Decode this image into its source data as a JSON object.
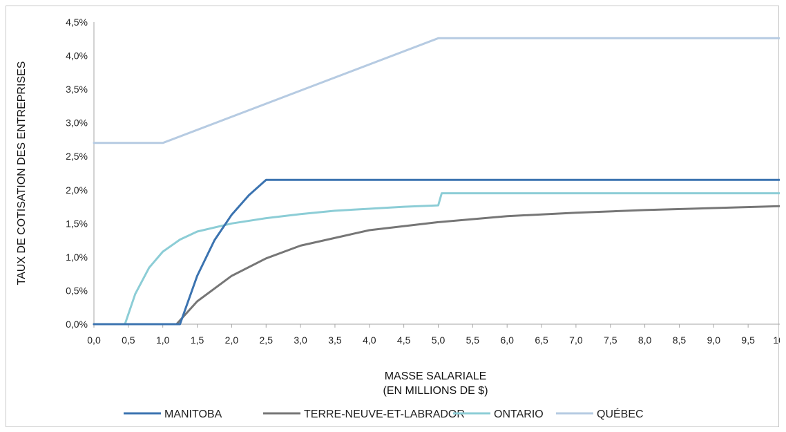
{
  "chart_data": {
    "type": "line",
    "ylabel": "TAUX DE COTISATION DES ENTREPRISES",
    "xlabel_line1": "MASSE SALARIALE",
    "xlabel_line2": "(EN MILLIONS DE $)",
    "xlim": [
      0,
      10
    ],
    "ylim": [
      0,
      4.5
    ],
    "x_ticks": [
      0,
      0.5,
      1,
      1.5,
      2,
      2.5,
      3,
      3.5,
      4,
      4.5,
      5,
      5.5,
      6,
      6.5,
      7,
      7.5,
      8,
      8.5,
      9,
      9.5,
      10
    ],
    "x_tick_labels": [
      "0,0",
      "0,5",
      "1,0",
      "1,5",
      "2,0",
      "2,5",
      "3,0",
      "3,5",
      "4,0",
      "4,5",
      "5,0",
      "5,5",
      "6,0",
      "6,5",
      "7,0",
      "7,5",
      "8,0",
      "8,5",
      "9,0",
      "9,5",
      "10,0"
    ],
    "y_ticks": [
      0,
      0.5,
      1,
      1.5,
      2,
      2.5,
      3,
      3.5,
      4,
      4.5
    ],
    "y_tick_labels": [
      "0,0%",
      "0,5%",
      "1,0%",
      "1,5%",
      "2,0%",
      "2,5%",
      "3,0%",
      "3,5%",
      "4,0%",
      "4,5%"
    ],
    "grid": false,
    "legend_position": "bottom",
    "series": [
      {
        "name": "MANITOBA",
        "color": "#3b73b0",
        "x": [
          0,
          1.25,
          1.5,
          1.75,
          2.0,
          2.25,
          2.5,
          10
        ],
        "y": [
          0,
          0,
          0.72,
          1.25,
          1.63,
          1.92,
          2.15,
          2.15
        ]
      },
      {
        "name": "TERRE-NEUVE-ET-LABRADOR",
        "color": "#767676",
        "x": [
          0,
          1.2,
          1.5,
          2.0,
          2.5,
          3.0,
          4.0,
          5.0,
          6.0,
          7.0,
          8.0,
          9.0,
          10.0
        ],
        "y": [
          0,
          0,
          0.34,
          0.72,
          0.98,
          1.17,
          1.4,
          1.52,
          1.61,
          1.66,
          1.7,
          1.73,
          1.76
        ]
      },
      {
        "name": "ONTARIO",
        "color": "#8ccdd6",
        "x": [
          0,
          0.45,
          0.6,
          0.8,
          1.0,
          1.25,
          1.5,
          2.0,
          2.5,
          3.0,
          3.5,
          4.0,
          4.5,
          5.0,
          5.05,
          10.0
        ],
        "y": [
          0,
          0,
          0.45,
          0.84,
          1.08,
          1.26,
          1.38,
          1.5,
          1.58,
          1.64,
          1.69,
          1.72,
          1.75,
          1.77,
          1.95,
          1.95
        ]
      },
      {
        "name": "QUÉBEC",
        "color": "#b6cbe2",
        "x": [
          0,
          1.0,
          5.0,
          10.0
        ],
        "y": [
          2.7,
          2.7,
          4.26,
          4.26
        ]
      }
    ]
  }
}
